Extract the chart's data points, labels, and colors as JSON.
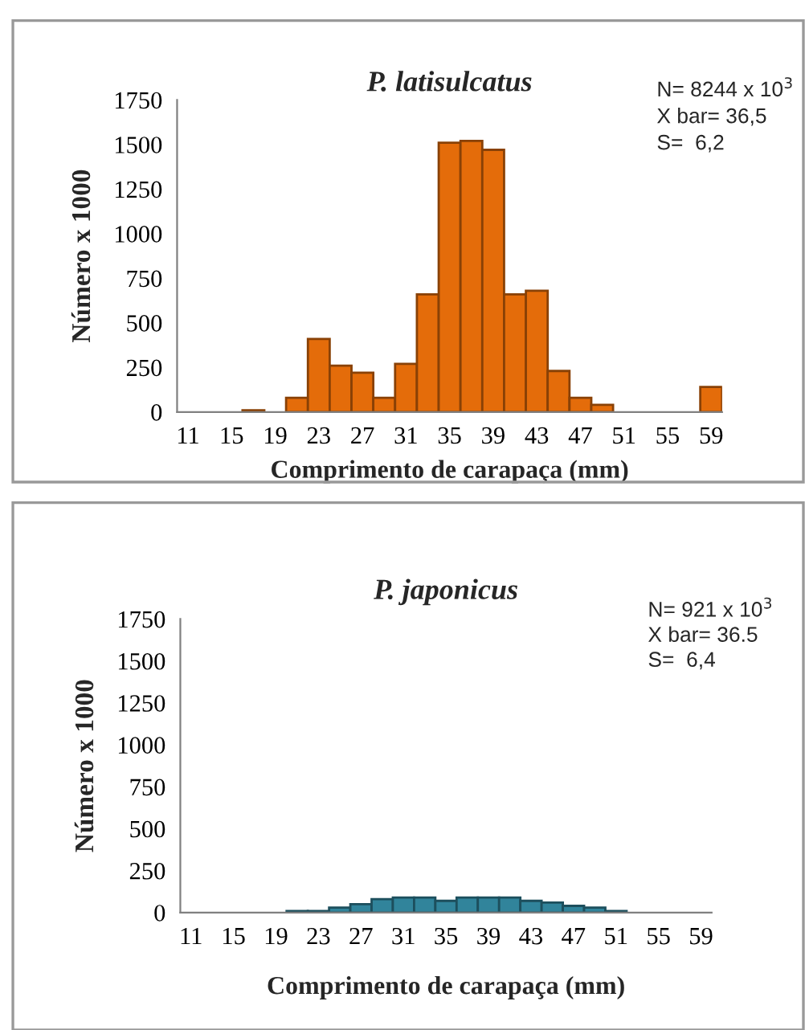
{
  "chart_data": [
    {
      "type": "bar",
      "title": "P. latisulcatus",
      "xlabel": "Comprimento de carapaça (mm)",
      "ylabel": "Número x 1000",
      "categories": [
        "11",
        null,
        "15",
        null,
        "19",
        null,
        "23",
        null,
        "27",
        null,
        "31",
        null,
        "35",
        null,
        "39",
        null,
        "43",
        null,
        "47",
        null,
        "51",
        null,
        "55",
        null,
        "59"
      ],
      "values": [
        0,
        0,
        0,
        10,
        0,
        80,
        410,
        260,
        220,
        80,
        270,
        660,
        1510,
        1520,
        1470,
        660,
        680,
        230,
        80,
        40,
        0,
        0,
        0,
        0,
        140
      ],
      "color": "#e46c0a",
      "ylim": [
        0,
        1750
      ],
      "yticks": [
        0,
        250,
        500,
        750,
        1000,
        1250,
        1500,
        1750
      ],
      "grid": false,
      "legend": false,
      "annotations": [
        "N= 8244 x 10$^{3}$",
        "X bar= 36,5",
        "S=  6,2"
      ]
    },
    {
      "type": "bar",
      "title": "P. japonicus",
      "xlabel": "Comprimento de carapaça (mm)",
      "ylabel": "Número x 1000",
      "categories": [
        "11",
        null,
        "15",
        null,
        "19",
        null,
        "23",
        null,
        "27",
        null,
        "31",
        null,
        "35",
        null,
        "39",
        null,
        "43",
        null,
        "47",
        null,
        "51",
        null,
        "55",
        null,
        "59"
      ],
      "values": [
        0,
        0,
        0,
        0,
        0,
        10,
        10,
        30,
        50,
        80,
        90,
        90,
        70,
        90,
        90,
        90,
        70,
        60,
        40,
        30,
        10,
        0,
        0,
        0,
        0
      ],
      "color": "#31849b",
      "ylim": [
        0,
        1750
      ],
      "yticks": [
        0,
        250,
        500,
        750,
        1000,
        1250,
        1500,
        1750
      ],
      "grid": false,
      "legend": false,
      "annotations": [
        "N= 921 x 10$^{3}$",
        "X bar= 36.5",
        "S=  6,4"
      ]
    }
  ]
}
